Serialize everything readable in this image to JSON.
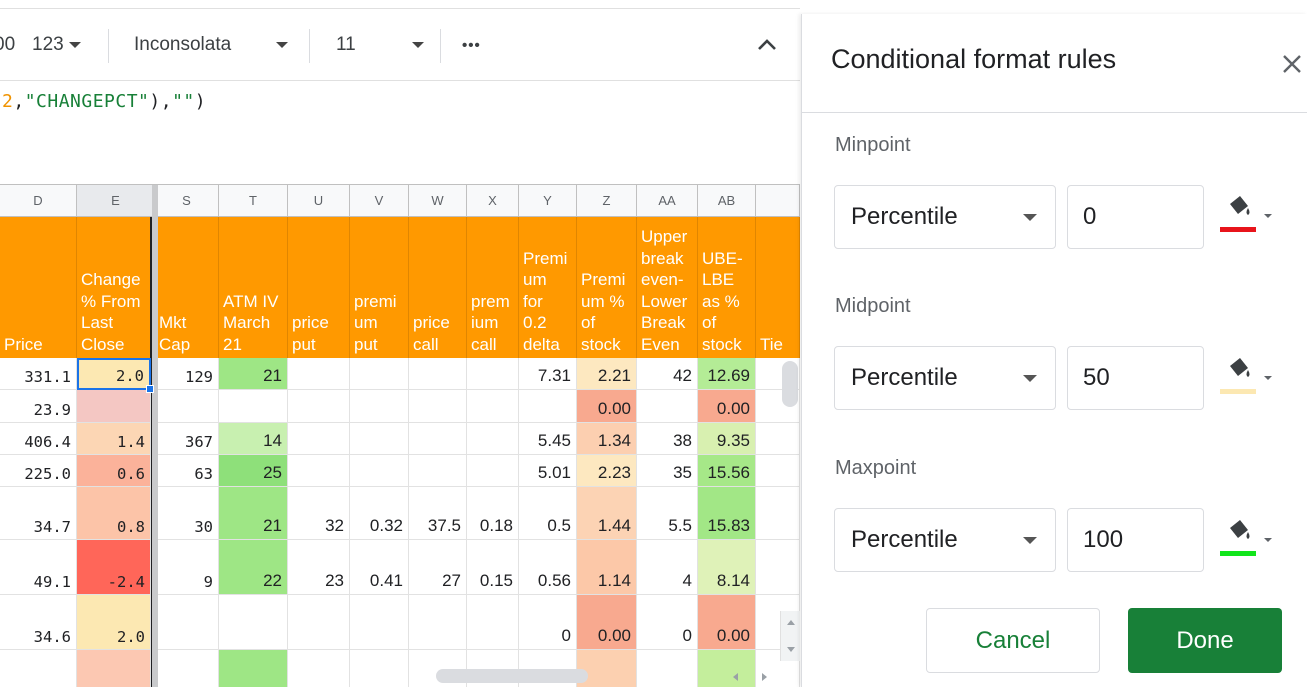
{
  "toolbar": {
    "left_fragment": "00",
    "number_format": "123",
    "font": "Inconsolata",
    "font_size": "11",
    "more": "•••"
  },
  "formula": {
    "num": "2",
    "sep1": ",",
    "str1": "\"CHANGEPCT\"",
    "mid": "),",
    "str2": "\"\"",
    "end": ")"
  },
  "columns": [
    {
      "letter": "D",
      "header": "Price",
      "align": "right"
    },
    {
      "letter": "E",
      "header": "Change\n% From\nLast\nClose"
    },
    {
      "letter": "S",
      "header": "Mkt\nCap"
    },
    {
      "letter": "T",
      "header": "ATM IV\nMarch\n21"
    },
    {
      "letter": "U",
      "header": "price\nput"
    },
    {
      "letter": "V",
      "header": "premi\num\nput"
    },
    {
      "letter": "W",
      "header": "price\ncall"
    },
    {
      "letter": "X",
      "header": "prem\nium\ncall"
    },
    {
      "letter": "Y",
      "header": "Premi\num\nfor\n0.2\ndelta"
    },
    {
      "letter": "Z",
      "header": "Premi\num %\nof\nstock"
    },
    {
      "letter": "AA",
      "header": "Upper\nbreak\neven-\nLower\nBreak\nEven"
    },
    {
      "letter": "AB",
      "header": "UBE-\nLBE\nas %\nof\nstock"
    },
    {
      "letter": "",
      "header": "Tie"
    }
  ],
  "rows": [
    {
      "D": "331.1",
      "E": "2.0",
      "S": "129",
      "T": "21",
      "U": "",
      "V": "",
      "W": "",
      "X": "",
      "Y": "7.31",
      "Z": "2.21",
      "AA": "42",
      "AB": "12.69"
    },
    {
      "D": "23.9",
      "E": "",
      "S": "",
      "T": "",
      "U": "",
      "V": "",
      "W": "",
      "X": "",
      "Y": "",
      "Z": "0.00",
      "AA": "",
      "AB": "0.00"
    },
    {
      "D": "406.4",
      "E": "1.4",
      "S": "367",
      "T": "14",
      "U": "",
      "V": "",
      "W": "",
      "X": "",
      "Y": "5.45",
      "Z": "1.34",
      "AA": "38",
      "AB": "9.35"
    },
    {
      "D": "225.0",
      "E": "0.6",
      "S": "63",
      "T": "25",
      "U": "",
      "V": "",
      "W": "",
      "X": "",
      "Y": "5.01",
      "Z": "2.23",
      "AA": "35",
      "AB": "15.56"
    },
    {
      "D": "34.7",
      "E": "0.8",
      "S": "30",
      "T": "21",
      "U": "32",
      "V": "0.32",
      "W": "37.5",
      "X": "0.18",
      "Y": "0.5",
      "Z": "1.44",
      "AA": "5.5",
      "AB": "15.83"
    },
    {
      "D": "49.1",
      "E": "-2.4",
      "S": "9",
      "T": "22",
      "U": "23",
      "V": "0.41",
      "W": "27",
      "X": "0.15",
      "Y": "0.56",
      "Z": "1.14",
      "AA": "4",
      "AB": "8.14"
    },
    {
      "D": "34.6",
      "E": "2.0",
      "S": "",
      "T": "",
      "U": "",
      "V": "",
      "W": "",
      "X": "",
      "Y": "0",
      "Z": "0.00",
      "AA": "0",
      "AB": "0.00"
    },
    {
      "D": "",
      "E": "",
      "S": "",
      "T": "",
      "U": "",
      "V": "",
      "W": "",
      "X": "",
      "Y": "",
      "Z": "",
      "AA": "",
      "AB": ""
    }
  ],
  "fills": {
    "E": [
      "#fce8b2",
      "#f4c7c3",
      "#fcd6b4",
      "#fbb29a",
      "#fcc4a8",
      "#ff6659",
      "#fce8b2",
      "#fcc8b2"
    ],
    "T": [
      "#9ee685",
      "#ffffff",
      "#c8f0b0",
      "#8ee07a",
      "#9ee685",
      "#9ee685",
      "#ffffff",
      "#9ee685"
    ],
    "Z": [
      "#fde8c0",
      "#f8a98f",
      "#fccfb0",
      "#fde8c0",
      "#fcd3b4",
      "#fcc8a8",
      "#f8a98f",
      "#fcd0b0"
    ],
    "AB": [
      "#b4ec96",
      "#f8a98f",
      "#d8f0b0",
      "#a6e888",
      "#a2e786",
      "#dff2b8",
      "#f8a98f",
      "#c4ee9c"
    ]
  },
  "panel": {
    "title": "Conditional format rules",
    "minpoint_label": "Minpoint",
    "minpoint_type": "Percentile",
    "minpoint_value": "0",
    "minpoint_color": "#e8141b",
    "midpoint_label": "Midpoint",
    "midpoint_type": "Percentile",
    "midpoint_value": "50",
    "midpoint_color": "#fce8b2",
    "maxpoint_label": "Maxpoint",
    "maxpoint_type": "Percentile",
    "maxpoint_value": "100",
    "maxpoint_color": "#11e51b",
    "cancel": "Cancel",
    "done": "Done"
  }
}
